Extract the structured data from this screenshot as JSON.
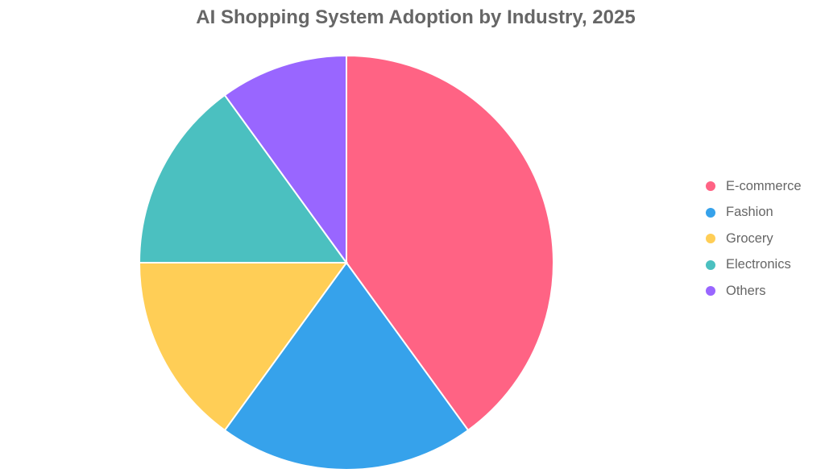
{
  "chart_data": {
    "type": "pie",
    "title": "AI Shopping System Adoption by Industry, 2025",
    "categories": [
      "E-commerce",
      "Fashion",
      "Grocery",
      "Electronics",
      "Others"
    ],
    "values": [
      40,
      20,
      15,
      15,
      10
    ],
    "colors": [
      "#FF6384",
      "#36A2EB",
      "#FFCE56",
      "#4BC0C0",
      "#9966FF"
    ],
    "legend_position": "right"
  }
}
